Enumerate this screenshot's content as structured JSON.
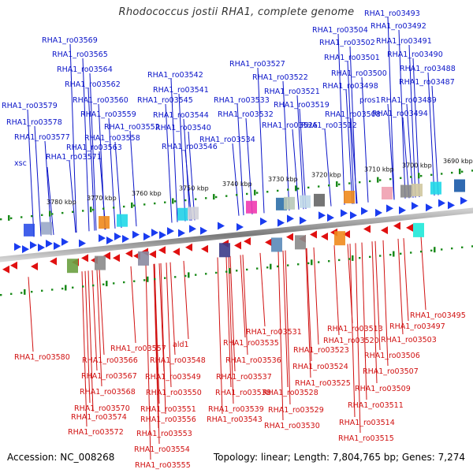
{
  "title": "Rhodococcus jostii RHA1, complete genome",
  "footer": {
    "accession": "Accession: NC_008268",
    "stats": "Topology: linear; Length: 7,804,765 bp; Genes: 7,274"
  },
  "scale": {
    "ticks": [
      "3690 kbp",
      "3700 kbp",
      "3710 kbp",
      "3720 kbp",
      "3730 kbp",
      "3740 kbp",
      "3750 kbp",
      "3760 kbp",
      "3770 kbp",
      "3780 kbp"
    ]
  },
  "colors": {
    "top_labels": "#0a14c8",
    "bottom_labels": "#d01010",
    "minor_ticks": "#1a8a1a",
    "axis": "#888888"
  },
  "genes_top": [
    "RHA1_ro03493",
    "RHA1_ro03504",
    "RHA1_ro03492",
    "RHA1_ro03502",
    "RHA1_ro03491",
    "RHA1_ro03501",
    "RHA1_ro03490",
    "RHA1_ro03488",
    "RHA1_ro03500",
    "RHA1_ro03487",
    "RHA1_ro03498",
    "RHA1_ro03489",
    "RHA1_ro03569",
    "RHA1_ro03565",
    "RHA1_ro03564",
    "RHA1_ro03562",
    "RHA1_ro03560",
    "RHA1_ro03559",
    "RHA1_ro03558",
    "RHA1_ro03563",
    "RHA1_ro03571",
    "RHA1_ro03579",
    "RHA1_ro03578",
    "RHA1_ro03577",
    "xsc",
    "RHA1_ro03542",
    "RHA1_ro03541",
    "RHA1_ro03545",
    "RHA1_ro03544",
    "RHA1_ro03540",
    "RHA1_ro03546",
    "RHA1_ro03552",
    "RHA1_ro03527",
    "RHA1_ro03522",
    "RHA1_ro03521",
    "RHA1_ro03533",
    "RHA1_ro03519",
    "RHA1_ro03532",
    "RHA1_ro03526",
    "RHA1_ro03534",
    "RHA1_ro03512",
    "RHA1_ro03508",
    "pros1",
    "RHA1_ro03494"
  ],
  "genes_bottom": [
    "RHA1_ro03495",
    "RHA1_ro03497",
    "RHA1_ro03503",
    "RHA1_ro03513",
    "RHA1_ro03520",
    "RHA1_ro03531",
    "RHA1_ro03535",
    "RHA1_ro03523",
    "RHA1_ro03506",
    "RHA1_ro03524",
    "RHA1_ro03536",
    "RHA1_ro03507",
    "RHA1_ro03525",
    "RHA1_ro03537",
    "RHA1_ro03509",
    "RHA1_ro03528",
    "RHA1_ro03538",
    "RHA1_ro03511",
    "RHA1_ro03529",
    "RHA1_ro03539",
    "RHA1_ro03514",
    "RHA1_ro03530",
    "RHA1_ro03515",
    "RHA1_ro03557",
    "ald1",
    "RHA1_ro03580",
    "RHA1_ro03566",
    "RHA1_ro03548",
    "RHA1_ro03567",
    "RHA1_ro03549",
    "RHA1_ro03568",
    "RHA1_ro03550",
    "RHA1_ro03570",
    "RHA1_ro03551",
    "RHA1_ro03574",
    "RHA1_ro03556",
    "RHA1_ro03543",
    "RHA1_ro03572",
    "RHA1_ro03553",
    "RHA1_ro03554",
    "RHA1_ro03555"
  ]
}
